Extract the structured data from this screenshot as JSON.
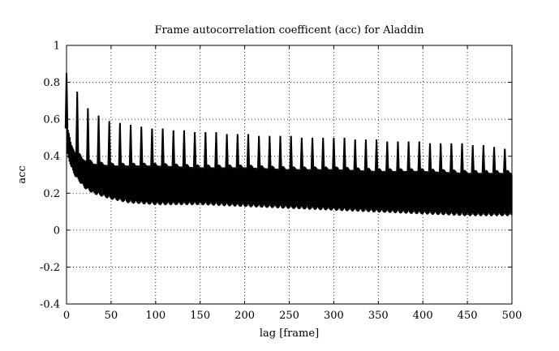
{
  "chart_data": {
    "type": "line",
    "title": "Frame autocorrelation coefficent (acc) for Aladdin",
    "xlabel": "lag [frame]",
    "ylabel": "acc",
    "xlim": [
      0,
      500
    ],
    "ylim": [
      -0.4,
      1
    ],
    "xticks": [
      0,
      50,
      100,
      150,
      200,
      250,
      300,
      350,
      400,
      450,
      500
    ],
    "yticks": [
      -0.4,
      -0.2,
      0,
      0.2,
      0.4,
      0.6,
      0.8,
      1
    ],
    "xtick_labels": [
      "0",
      "50",
      "100",
      "150",
      "200",
      "250",
      "300",
      "350",
      "400",
      "450",
      "500"
    ],
    "ytick_labels": [
      "-0.4",
      "-0.2",
      "0",
      "0.2",
      "0.4",
      "0.6",
      "0.8",
      "1"
    ],
    "grid": true,
    "grid_style": "dotted",
    "series": [
      {
        "color": "#000000",
        "periodic_peaks": {
          "period_frames": 12,
          "lags": [
            0,
            12,
            24,
            36,
            48,
            60,
            72,
            84,
            96,
            108,
            120,
            132,
            144,
            156,
            168,
            180,
            192,
            204,
            216,
            228,
            240,
            252,
            264,
            276,
            288,
            300,
            312,
            324,
            336,
            348,
            360,
            372,
            384,
            396,
            408,
            420,
            432,
            444,
            456,
            468,
            480,
            492
          ],
          "values": [
            0.85,
            0.75,
            0.66,
            0.62,
            0.59,
            0.58,
            0.57,
            0.56,
            0.55,
            0.55,
            0.54,
            0.54,
            0.53,
            0.53,
            0.53,
            0.52,
            0.52,
            0.52,
            0.51,
            0.51,
            0.51,
            0.51,
            0.5,
            0.5,
            0.5,
            0.5,
            0.5,
            0.49,
            0.49,
            0.49,
            0.48,
            0.48,
            0.48,
            0.48,
            0.47,
            0.47,
            0.47,
            0.47,
            0.46,
            0.46,
            0.45,
            0.44
          ]
        },
        "envelope": {
          "lags": [
            1,
            5,
            10,
            20,
            30,
            50,
            70,
            100,
            150,
            200,
            250,
            300,
            350,
            400,
            450,
            500
          ],
          "upper": [
            0.55,
            0.47,
            0.42,
            0.38,
            0.36,
            0.35,
            0.35,
            0.35,
            0.34,
            0.34,
            0.33,
            0.33,
            0.32,
            0.32,
            0.31,
            0.31
          ],
          "lower": [
            0.42,
            0.35,
            0.3,
            0.24,
            0.21,
            0.18,
            0.16,
            0.15,
            0.15,
            0.14,
            0.13,
            0.12,
            0.11,
            0.1,
            0.09,
            0.09
          ]
        }
      }
    ]
  }
}
